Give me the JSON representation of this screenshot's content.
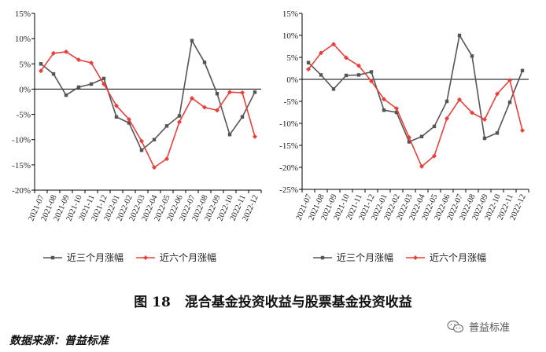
{
  "chart_data": [
    {
      "type": "line",
      "x": [
        "2021-07",
        "2021-08",
        "2021-09",
        "2021-10",
        "2021-11",
        "2021-12",
        "2022-01",
        "2022-02",
        "2022-03",
        "2022-04",
        "2022-05",
        "2022-06",
        "2022-07",
        "2022-08",
        "2022-09",
        "2022-10",
        "2022-11",
        "2022-12"
      ],
      "series": [
        {
          "name": "近三个月涨幅",
          "color": "#555555",
          "marker": "square",
          "values": [
            5.0,
            3.0,
            -1.2,
            0.4,
            1.0,
            2.1,
            -5.5,
            -6.7,
            -12.1,
            -10.0,
            -7.3,
            -5.3,
            9.6,
            5.3,
            -0.9,
            -9.0,
            -5.5,
            -0.6
          ]
        },
        {
          "name": "近六个月涨幅",
          "color": "#e8403a",
          "marker": "diamond",
          "values": [
            3.6,
            7.1,
            7.4,
            5.8,
            5.2,
            1.0,
            -3.3,
            -6.0,
            -10.3,
            -15.5,
            -13.8,
            -6.5,
            -1.8,
            -3.6,
            -4.2,
            -0.6,
            -0.7,
            -9.4
          ]
        }
      ],
      "ylim": [
        -20,
        15
      ],
      "yticks": [
        -20,
        -15,
        -10,
        -5,
        0,
        5,
        10,
        15
      ],
      "ytick_labels": [
        "-20%",
        "-15%",
        "-10%",
        "-5%",
        "0%",
        "5%",
        "10%",
        "15%"
      ],
      "grid": false,
      "legend_position": "bottom"
    },
    {
      "type": "line",
      "x": [
        "2021-07",
        "2021-08",
        "2021-09",
        "2021-10",
        "2021-11",
        "2021-12",
        "2022-01",
        "2022-02",
        "2022-03",
        "2022-04",
        "2022-05",
        "2022-06",
        "2022-07",
        "2022-08",
        "2022-09",
        "2022-10",
        "2022-11",
        "2022-12"
      ],
      "series": [
        {
          "name": "近三个月涨幅",
          "color": "#555555",
          "marker": "square",
          "values": [
            3.8,
            1.0,
            -2.2,
            0.9,
            1.0,
            1.7,
            -7.0,
            -7.5,
            -14.2,
            -13.0,
            -10.7,
            -5.0,
            10.0,
            5.3,
            -13.4,
            -12.2,
            -5.2,
            2.0
          ]
        },
        {
          "name": "近六个月涨幅",
          "color": "#e8403a",
          "marker": "diamond",
          "values": [
            2.3,
            6.0,
            8.0,
            4.9,
            3.1,
            -0.4,
            -4.5,
            -6.6,
            -13.2,
            -19.8,
            -17.4,
            -8.9,
            -4.6,
            -7.6,
            -9.1,
            -3.3,
            -0.2,
            -11.6
          ]
        }
      ],
      "ylim": [
        -25,
        15
      ],
      "yticks": [
        -25,
        -20,
        -15,
        -10,
        -5,
        0,
        5,
        10,
        15
      ],
      "ytick_labels": [
        "-25%",
        "-20%",
        "-15%",
        "-10%",
        "-5%",
        "0%",
        "5%",
        "10%",
        "15%"
      ],
      "grid": false,
      "legend_position": "bottom"
    }
  ],
  "caption": {
    "figure_no": "图 18",
    "title": "混合基金投资收益与股票基金投资收益"
  },
  "source": "数据来源：普益标准",
  "watermark": {
    "text": "普益标准",
    "icon": "wechat-icon"
  }
}
